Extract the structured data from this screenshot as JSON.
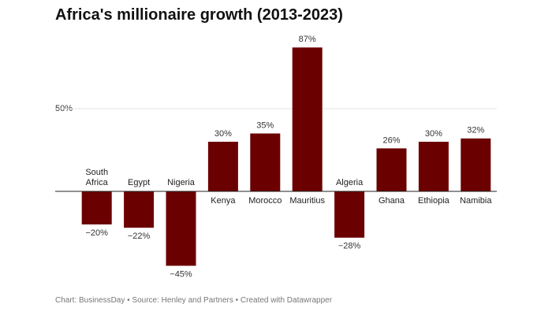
{
  "chart_data": {
    "type": "bar",
    "title": "Africa's millionaire growth (2013-2023)",
    "categories": [
      "South Africa",
      "Egypt",
      "Nigeria",
      "Kenya",
      "Morocco",
      "Mauritius",
      "Algeria",
      "Ghana",
      "Ethiopia",
      "Namibia"
    ],
    "values": [
      -20,
      -22,
      -45,
      30,
      35,
      87,
      -28,
      26,
      30,
      32
    ],
    "value_labels": [
      "−20%",
      "−22%",
      "−45%",
      "30%",
      "35%",
      "87%",
      "−28%",
      "26%",
      "30%",
      "32%"
    ],
    "color": "#6b0000",
    "ylim": [
      -50,
      90
    ],
    "yticks": [
      {
        "value": 50,
        "label": "50%"
      }
    ],
    "grid": true,
    "source": "Chart: BusinessDay • Source: Henley and Partners • Created with Datawrapper"
  }
}
